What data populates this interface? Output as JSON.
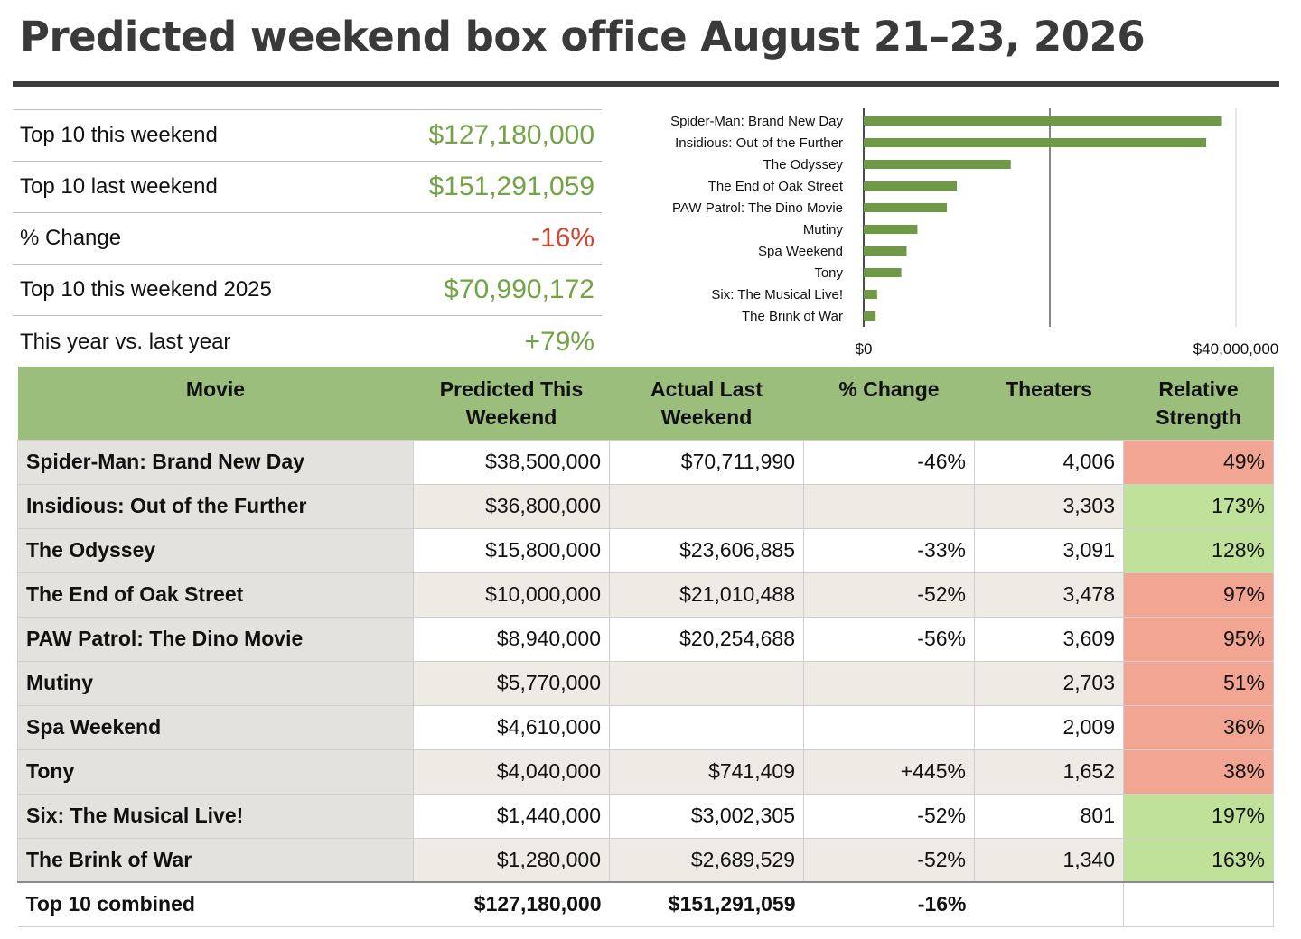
{
  "title": "Predicted weekend box office August 21–23, 2026",
  "colors": {
    "positive": "#72a345",
    "negative": "#d1452e",
    "header_bg": "#9bbe7c",
    "bar": "#6f9a45",
    "weak": "#f2a592",
    "strong": "#c0e19a"
  },
  "summary": [
    {
      "label": "Top 10 this weekend",
      "value": "$127,180,000",
      "tone": "positive"
    },
    {
      "label": "Top 10 last weekend",
      "value": "$151,291,059",
      "tone": "positive"
    },
    {
      "label": "% Change",
      "value": "-16%",
      "tone": "negative"
    },
    {
      "label": "Top 10 this weekend 2025",
      "value": "$70,990,172",
      "tone": "positive"
    },
    {
      "label": "This year vs. last year",
      "value": "+79%",
      "tone": "positive"
    }
  ],
  "chart_data": {
    "type": "bar",
    "orientation": "horizontal",
    "categories": [
      "Spider-Man: Brand New Day",
      "Insidious: Out of the Further",
      "The Odyssey",
      "The End of Oak Street",
      "PAW Patrol: The Dino Movie",
      "Mutiny",
      "Spa Weekend",
      "Tony",
      "Six: The Musical Live!",
      "The Brink of War"
    ],
    "values": [
      38500000,
      36800000,
      15800000,
      10000000,
      8940000,
      5770000,
      4610000,
      4040000,
      1440000,
      1280000
    ],
    "xlim": [
      0,
      40000000
    ],
    "tick_labels": [
      "$0",
      "$40,000,000"
    ],
    "reference_line": 20000000,
    "grid": false
  },
  "table": {
    "headers": [
      "Movie",
      "Predicted This Weekend",
      "Actual Last Weekend",
      "% Change",
      "Theaters",
      "Relative Strength"
    ],
    "rows": [
      {
        "movie": "Spider-Man: Brand New Day",
        "predicted": "$38,500,000",
        "last": "$70,711,990",
        "change": "-46%",
        "theaters": "4,006",
        "strength": "49%",
        "strength_level": "weak"
      },
      {
        "movie": "Insidious: Out of the Further",
        "predicted": "$36,800,000",
        "last": "",
        "change": "",
        "theaters": "3,303",
        "strength": "173%",
        "strength_level": "strong"
      },
      {
        "movie": "The Odyssey",
        "predicted": "$15,800,000",
        "last": "$23,606,885",
        "change": "-33%",
        "theaters": "3,091",
        "strength": "128%",
        "strength_level": "strong"
      },
      {
        "movie": "The End of Oak Street",
        "predicted": "$10,000,000",
        "last": "$21,010,488",
        "change": "-52%",
        "theaters": "3,478",
        "strength": "97%",
        "strength_level": "weak"
      },
      {
        "movie": "PAW Patrol: The Dino Movie",
        "predicted": "$8,940,000",
        "last": "$20,254,688",
        "change": "-56%",
        "theaters": "3,609",
        "strength": "95%",
        "strength_level": "weak"
      },
      {
        "movie": "Mutiny",
        "predicted": "$5,770,000",
        "last": "",
        "change": "",
        "theaters": "2,703",
        "strength": "51%",
        "strength_level": "weak"
      },
      {
        "movie": "Spa Weekend",
        "predicted": "$4,610,000",
        "last": "",
        "change": "",
        "theaters": "2,009",
        "strength": "36%",
        "strength_level": "weak"
      },
      {
        "movie": "Tony",
        "predicted": "$4,040,000",
        "last": "$741,409",
        "change": "+445%",
        "theaters": "1,652",
        "strength": "38%",
        "strength_level": "weak"
      },
      {
        "movie": "Six: The Musical Live!",
        "predicted": "$1,440,000",
        "last": "$3,002,305",
        "change": "-52%",
        "theaters": "801",
        "strength": "197%",
        "strength_level": "strong"
      },
      {
        "movie": "The Brink of War",
        "predicted": "$1,280,000",
        "last": "$2,689,529",
        "change": "-52%",
        "theaters": "1,340",
        "strength": "163%",
        "strength_level": "strong"
      }
    ],
    "total": {
      "label": "Top 10 combined",
      "predicted": "$127,180,000",
      "last": "$151,291,059",
      "change": "-16%"
    }
  }
}
